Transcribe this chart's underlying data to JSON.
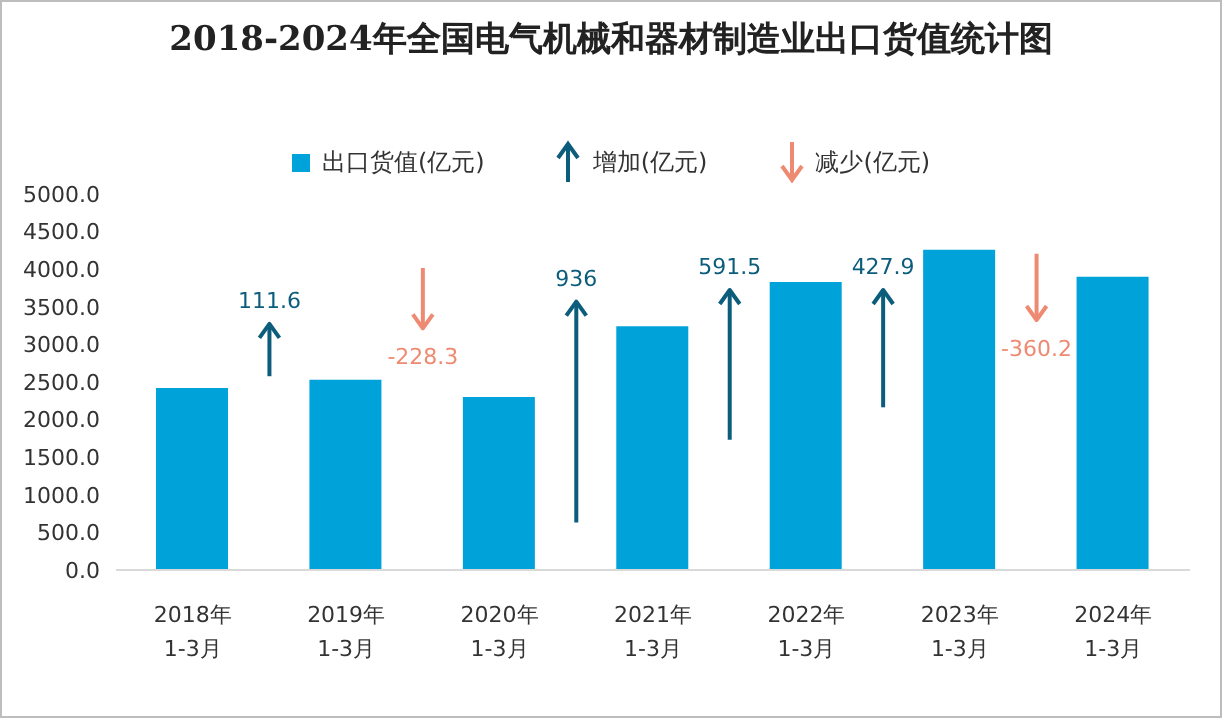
{
  "chart_data": {
    "type": "bar",
    "title": "2018-2024年全国电气机械和器材制造业出口货值统计图",
    "categories": [
      "2018年\n1-3月",
      "2019年\n1-3月",
      "2020年\n1-3月",
      "2021年\n1-3月",
      "2022年\n1-3月",
      "2023年\n1-3月",
      "2024年\n1-3月"
    ],
    "series": [
      {
        "name": "出口货值(亿元)",
        "color": "#00a2da",
        "values": [
          2420,
          2530,
          2300,
          3240,
          3830,
          4260,
          3900
        ]
      },
      {
        "name": "增加(亿元)",
        "type": "other",
        "color": "#0c5d7c",
        "values": [
          null,
          null,
          null,
          null,
          null,
          null,
          null
        ]
      },
      {
        "name": "减少(亿元)",
        "type": "other",
        "color": "#ef8a72",
        "values": [
          null,
          null,
          null,
          null,
          null,
          null,
          null
        ]
      }
    ],
    "annotations": [
      "111.6",
      "-228.3",
      "936",
      "591.5",
      "427.9",
      "-360.2"
    ],
    "ylim": [
      0,
      5000
    ],
    "yticks": [
      {
        "value": 0,
        "label": "0.0"
      },
      {
        "value": 500,
        "label": "500.0"
      },
      {
        "value": 1000,
        "label": "1000.0"
      },
      {
        "value": 1500,
        "label": "1500.0"
      },
      {
        "value": 2000,
        "label": "2000.0"
      },
      {
        "value": 2500,
        "label": "2500.0"
      },
      {
        "value": 3000,
        "label": "3000.0"
      },
      {
        "value": 3500,
        "label": "3500.0"
      },
      {
        "value": 4000,
        "label": "4000.0"
      },
      {
        "value": 4500,
        "label": "4500.0"
      },
      {
        "value": 5000,
        "label": "5000.0"
      }
    ],
    "grid": false,
    "legend": "top"
  }
}
